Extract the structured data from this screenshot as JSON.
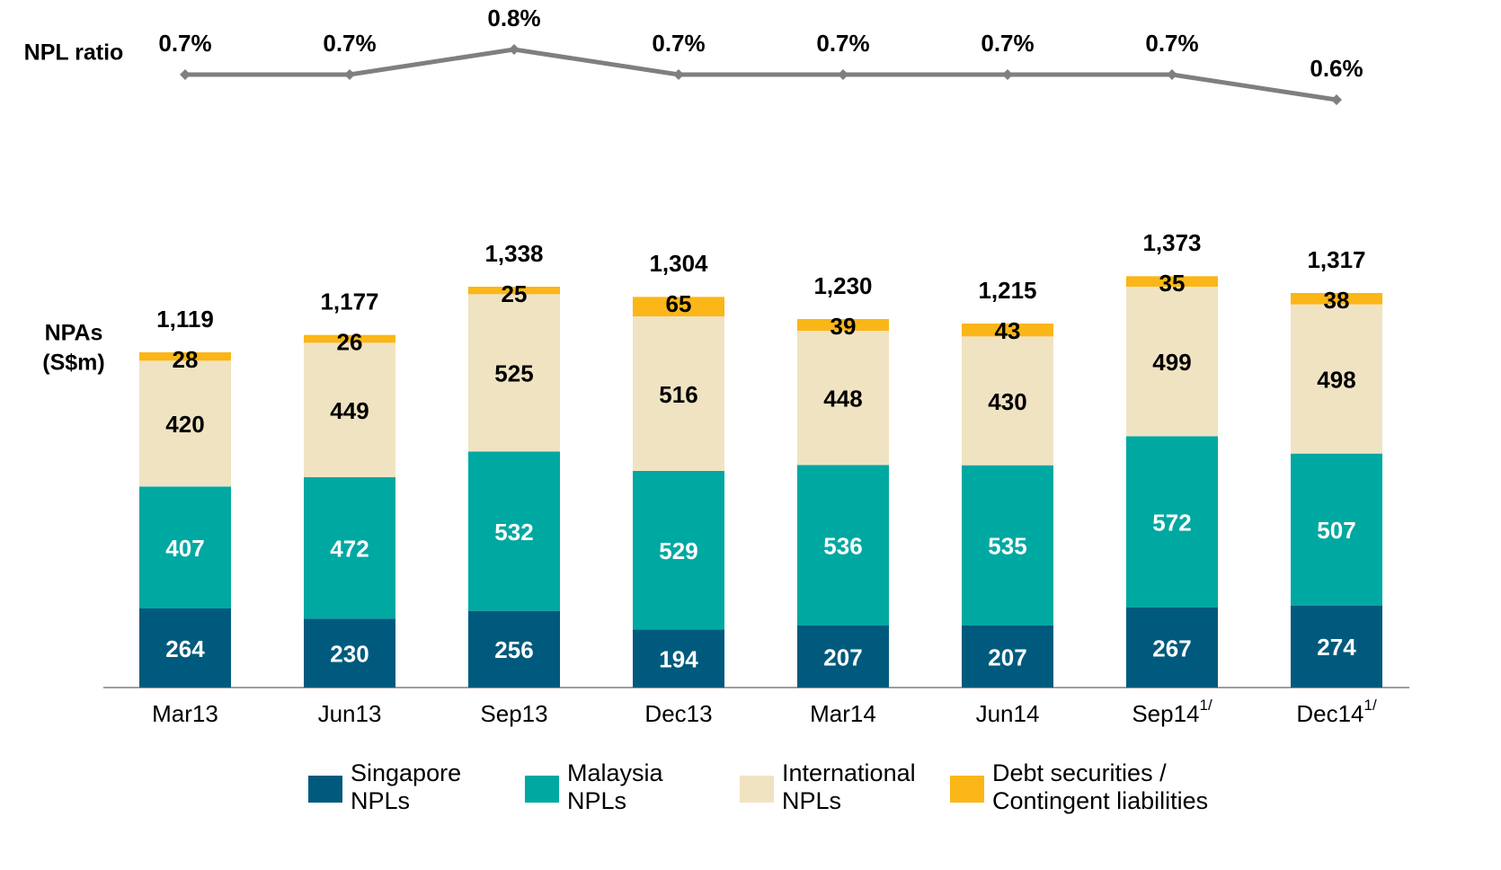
{
  "chart_data": {
    "type": "stacked_bar_line",
    "categories": [
      "Mar13",
      "Jun13",
      "Sep13",
      "Dec13",
      "Mar14",
      "Jun14",
      "Sep14",
      "Dec14"
    ],
    "category_notes": [
      null,
      null,
      null,
      null,
      null,
      null,
      "1/",
      "1/"
    ],
    "y_label": [
      "NPAs",
      "(S$m)"
    ],
    "series": [
      {
        "name": [
          "Singapore",
          "NPLs"
        ],
        "color": "#005a7d",
        "label_color": "#ffffff",
        "values": [
          264,
          230,
          256,
          194,
          207,
          207,
          267,
          274
        ]
      },
      {
        "name": [
          "Malaysia",
          "NPLs"
        ],
        "color": "#00a8a2",
        "label_color": "#ffffff",
        "values": [
          407,
          472,
          532,
          529,
          536,
          535,
          572,
          507
        ]
      },
      {
        "name": [
          "International",
          "NPLs"
        ],
        "color": "#f0e3c2",
        "label_color": "#000000",
        "values": [
          420,
          449,
          525,
          516,
          448,
          430,
          499,
          498
        ]
      },
      {
        "name": [
          "Debt securities /",
          "Contingent liabilities"
        ],
        "color": "#fbb617",
        "label_color": "#000000",
        "values": [
          28,
          26,
          25,
          65,
          39,
          43,
          35,
          38
        ]
      }
    ],
    "totals": [
      1119,
      1177,
      1338,
      1304,
      1230,
      1215,
      1373,
      1317
    ],
    "total_labels": [
      "1,119",
      "1,177",
      "1,338",
      "1,304",
      "1,230",
      "1,215",
      "1,373",
      "1,317"
    ],
    "ratio": {
      "name": "NPL ratio",
      "color": "#7f7f7f",
      "values": [
        0.7,
        0.7,
        0.8,
        0.7,
        0.7,
        0.7,
        0.7,
        0.6
      ],
      "value_labels": [
        "0.7%",
        "0.7%",
        "0.8%",
        "0.7%",
        "0.7%",
        "0.7%",
        "0.7%",
        "0.6%"
      ]
    }
  }
}
